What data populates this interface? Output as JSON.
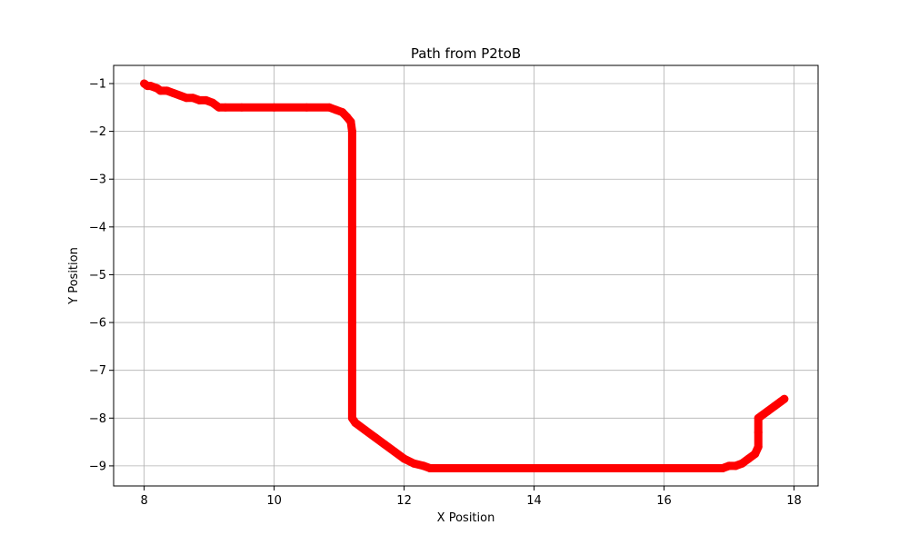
{
  "chart_data": {
    "type": "scatter",
    "title": "Path from P2toB",
    "xlabel": "X Position",
    "ylabel": "Y Position",
    "xlim": [
      7.53,
      18.37
    ],
    "ylim": [
      -9.42,
      -0.62
    ],
    "xticks": [
      8,
      10,
      12,
      14,
      16,
      18
    ],
    "yticks": [
      -1,
      -2,
      -3,
      -4,
      -5,
      -6,
      -7,
      -8,
      -9
    ],
    "xtick_labels": [
      "8",
      "10",
      "12",
      "14",
      "16",
      "18"
    ],
    "ytick_labels": [
      "−1",
      "−2",
      "−3",
      "−4",
      "−5",
      "−6",
      "−7",
      "−8",
      "−9"
    ],
    "grid": true,
    "marker_color": "#ff0000",
    "line_color": "#ff0000",
    "series": [
      {
        "x": [
          8.0,
          8.05,
          8.1,
          8.2,
          8.25,
          8.35,
          8.45,
          8.55,
          8.65,
          8.75,
          8.85,
          8.95,
          9.05,
          9.15,
          9.25,
          9.5,
          10.0,
          10.5,
          10.85,
          10.95,
          11.05,
          11.12,
          11.18,
          11.2,
          11.2,
          11.2,
          11.2,
          11.2,
          11.2,
          11.2,
          11.25,
          11.4,
          11.55,
          11.7,
          11.85,
          12.0,
          12.15,
          12.3,
          12.4,
          13.0,
          14.0,
          15.0,
          16.0,
          16.9,
          17.0,
          17.1,
          17.2,
          17.3,
          17.4,
          17.45,
          17.45,
          17.45,
          17.5,
          17.6,
          17.7,
          17.8,
          17.85
        ],
        "y": [
          -1.0,
          -1.05,
          -1.05,
          -1.1,
          -1.15,
          -1.15,
          -1.2,
          -1.25,
          -1.3,
          -1.3,
          -1.35,
          -1.35,
          -1.4,
          -1.5,
          -1.5,
          -1.5,
          -1.5,
          -1.5,
          -1.5,
          -1.55,
          -1.6,
          -1.7,
          -1.8,
          -2.0,
          -3.0,
          -4.0,
          -5.0,
          -6.0,
          -7.0,
          -8.0,
          -8.1,
          -8.25,
          -8.4,
          -8.55,
          -8.7,
          -8.85,
          -8.95,
          -9.0,
          -9.05,
          -9.05,
          -9.05,
          -9.05,
          -9.05,
          -9.05,
          -9.0,
          -9.0,
          -8.95,
          -8.85,
          -8.75,
          -8.6,
          -8.3,
          -8.0,
          -7.95,
          -7.85,
          -7.75,
          -7.65,
          -7.6
        ]
      }
    ]
  }
}
